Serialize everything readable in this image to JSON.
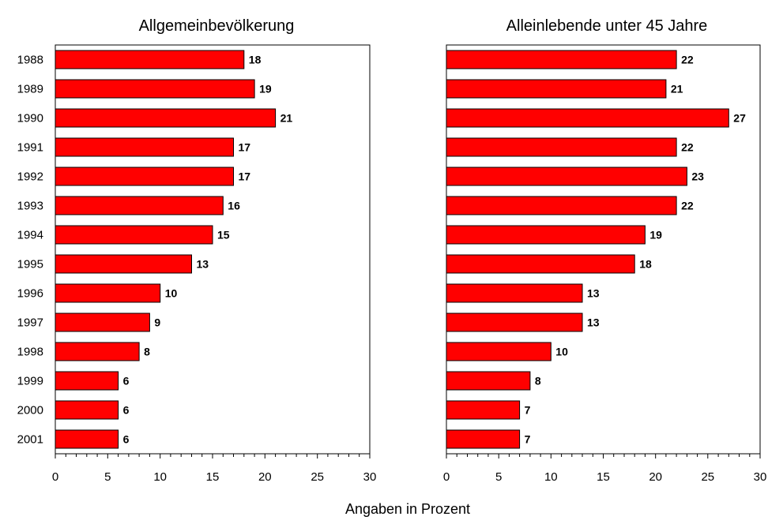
{
  "xlabel": "Angaben in Prozent",
  "chart_data": [
    {
      "type": "bar",
      "orientation": "horizontal",
      "title": "Allgemeinbevölkerung",
      "categories": [
        "1988",
        "1989",
        "1990",
        "1991",
        "1992",
        "1993",
        "1994",
        "1995",
        "1996",
        "1997",
        "1998",
        "1999",
        "2000",
        "2001"
      ],
      "values": [
        18,
        19,
        21,
        17,
        17,
        16,
        15,
        13,
        10,
        9,
        8,
        6,
        6,
        6
      ],
      "xlim": [
        0,
        30
      ],
      "xticks": [
        0,
        5,
        10,
        15,
        20,
        25,
        30
      ],
      "grid": false,
      "bar_color": "#ff0000"
    },
    {
      "type": "bar",
      "orientation": "horizontal",
      "title": "Alleinlebende unter 45 Jahre",
      "categories": [
        "1988",
        "1989",
        "1990",
        "1991",
        "1992",
        "1993",
        "1994",
        "1995",
        "1996",
        "1997",
        "1998",
        "1999",
        "2000",
        "2001"
      ],
      "values": [
        22,
        21,
        27,
        22,
        23,
        22,
        19,
        18,
        13,
        13,
        10,
        8,
        7,
        7
      ],
      "xlim": [
        0,
        30
      ],
      "xticks": [
        0,
        5,
        10,
        15,
        20,
        25,
        30
      ],
      "grid": false,
      "bar_color": "#ff0000"
    }
  ]
}
